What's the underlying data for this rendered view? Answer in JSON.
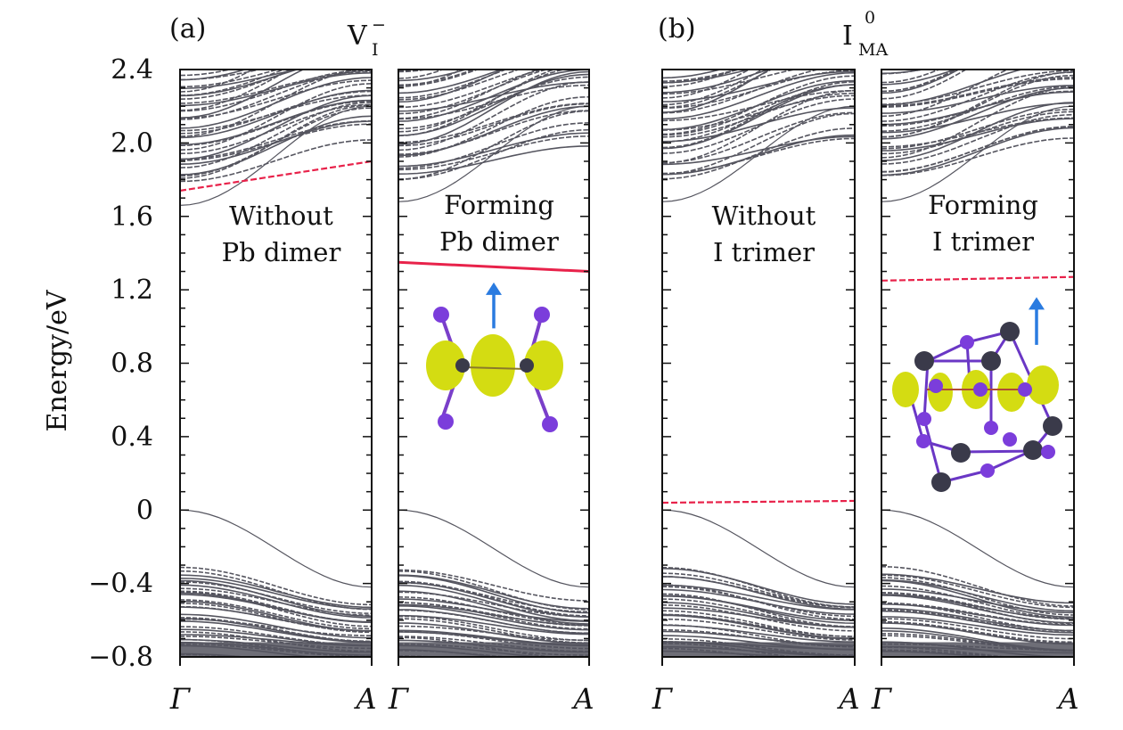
{
  "figure": {
    "panel_a_tag": "(a)",
    "panel_b_tag": "(b)",
    "defect_a": {
      "base": "V",
      "sub": "I",
      "sup": "−"
    },
    "defect_b": {
      "base": "I",
      "sub": "MA",
      "sup": "0"
    },
    "ylabel": "Energy/eV"
  },
  "chart_data": {
    "type": "line",
    "ylabel": "Energy/eV",
    "ylim": [
      -0.8,
      2.4
    ],
    "yticks": [
      2.4,
      2.0,
      1.6,
      1.2,
      0.8,
      0.4,
      0,
      -0.4,
      -0.8
    ],
    "ytick_labels": [
      "2.4",
      "2.0",
      "1.6",
      "1.2",
      "0.8",
      "0.4",
      "0",
      "−0.4",
      "−0.8"
    ],
    "x_kpoints": [
      "Γ",
      "A"
    ],
    "band_color": "#55555f",
    "defect_color": "#e8224a",
    "arrow_color": "#2a7be0",
    "isosurface_color": "#d4dc12",
    "panels": [
      {
        "annotation": [
          "Without",
          "Pb dimer"
        ],
        "cbm": 1.66,
        "vbm": 0.0,
        "defect_level": {
          "start": 1.74,
          "end": 1.9,
          "style": "dashed"
        },
        "has_arrow": false,
        "structure": "none"
      },
      {
        "annotation": [
          "Forming",
          "Pb dimer"
        ],
        "cbm": 1.68,
        "vbm": 0.0,
        "defect_level": {
          "start": 1.35,
          "end": 1.3,
          "style": "solid"
        },
        "has_arrow": true,
        "structure": "pb-dimer"
      },
      {
        "annotation": [
          "Without",
          "I trimer"
        ],
        "cbm": 1.68,
        "vbm": 0.0,
        "defect_level": {
          "start": 0.04,
          "end": 0.05,
          "style": "dashed"
        },
        "has_arrow": false,
        "structure": "none"
      },
      {
        "annotation": [
          "Forming",
          "I trimer"
        ],
        "cbm": 1.68,
        "vbm": 0.0,
        "defect_level": {
          "start": 1.25,
          "end": 1.27,
          "style": "dashed"
        },
        "has_arrow": true,
        "structure": "i-trimer"
      }
    ]
  }
}
